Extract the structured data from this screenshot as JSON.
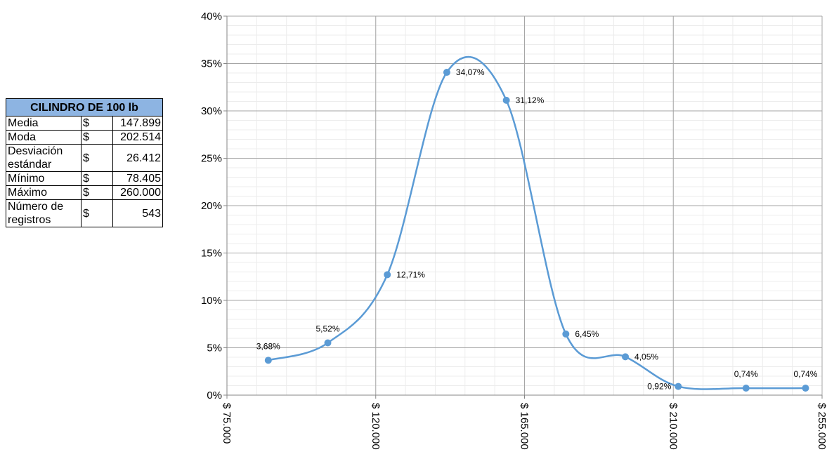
{
  "table": {
    "title": "CILINDRO DE 100 lb",
    "rows": [
      {
        "label": "Media",
        "currency": "$",
        "value": "147.899"
      },
      {
        "label": "Moda",
        "currency": "$",
        "value": "202.514"
      },
      {
        "label": "Desviación estándar",
        "currency": "$",
        "value": "26.412"
      },
      {
        "label": "Mínimo",
        "currency": "$",
        "value": "78.405"
      },
      {
        "label": "Máximo",
        "currency": "$",
        "value": "260.000"
      },
      {
        "label": "Número de registros",
        "currency": "$",
        "value": "543"
      }
    ]
  },
  "chart_data": {
    "type": "line",
    "smooth": true,
    "title": "",
    "xlabel": "",
    "ylabel": "",
    "xlim": [
      75000,
      255000
    ],
    "ylim": [
      0,
      0.4
    ],
    "x_ticks": [
      75000,
      120000,
      165000,
      210000,
      255000
    ],
    "x_tick_labels": [
      "$ 75.000",
      "$ 120.000",
      "$ 165.000",
      "$ 210.000",
      "$ 255.000"
    ],
    "y_ticks": [
      0,
      0.05,
      0.1,
      0.15,
      0.2,
      0.25,
      0.3,
      0.35,
      0.4
    ],
    "y_tick_labels": [
      "0%",
      "5%",
      "10%",
      "15%",
      "20%",
      "25%",
      "30%",
      "35%",
      "40%"
    ],
    "grid": "major and minor",
    "legend": "none",
    "series": [
      {
        "color": "#5b9bd5",
        "points": [
          {
            "x": 87500,
            "y": 0.0368,
            "label": "3,68%"
          },
          {
            "x": 105500,
            "y": 0.0552,
            "label": "5,52%"
          },
          {
            "x": 123500,
            "y": 0.1271,
            "label": "12,71%"
          },
          {
            "x": 141500,
            "y": 0.3407,
            "label": "34,07%"
          },
          {
            "x": 159500,
            "y": 0.3112,
            "label": "31,12%"
          },
          {
            "x": 177500,
            "y": 0.0645,
            "label": "6,45%"
          },
          {
            "x": 195500,
            "y": 0.0405,
            "label": "4,05%"
          },
          {
            "x": 211500,
            "y": 0.0092,
            "label": "0,92%"
          },
          {
            "x": 232000,
            "y": 0.0074,
            "label": "0,74%"
          },
          {
            "x": 250000,
            "y": 0.0074,
            "label": "0,74%"
          }
        ]
      }
    ]
  }
}
